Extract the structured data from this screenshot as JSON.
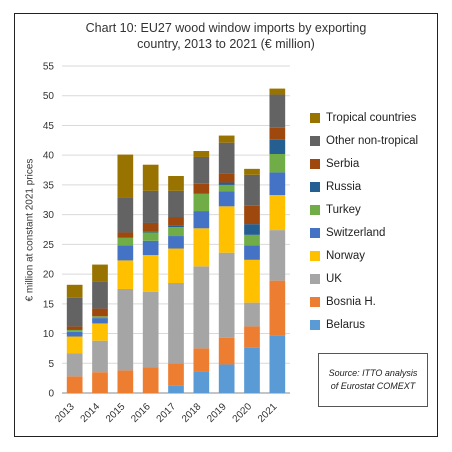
{
  "chart_data": {
    "type": "bar",
    "stacked": true,
    "title_lines": [
      "Chart 10: EU27 wood window imports by exporting",
      "country, 2013 to 2021 (€ million)"
    ],
    "ylabel": "€ million at constant 2021 prices",
    "xlabel": "",
    "ylim": [
      0,
      55
    ],
    "yticks": [
      "0",
      "5",
      "10",
      "15",
      "20",
      "25",
      "30",
      "35",
      "40",
      "45",
      "50",
      "55"
    ],
    "grid": true,
    "legend_position": "right",
    "categories": [
      "2013",
      "2014",
      "2015",
      "2016",
      "2017",
      "2018",
      "2019",
      "2020",
      "2021"
    ],
    "series": [
      {
        "name": "Belarus",
        "color": "#5b9bd5",
        "values": [
          0,
          0,
          0,
          0,
          1.3,
          3.6,
          4.8,
          7.7,
          9.6
        ]
      },
      {
        "name": "Bosnia H.",
        "color": "#ed7d31",
        "values": [
          2.8,
          3.5,
          3.8,
          4.3,
          3.7,
          3.9,
          4.5,
          3.5,
          9.3
        ]
      },
      {
        "name": "UK",
        "color": "#a5a5a5",
        "values": [
          3.9,
          5.3,
          13.7,
          12.7,
          13.5,
          13.8,
          14.3,
          4.0,
          8.5
        ]
      },
      {
        "name": "Norway",
        "color": "#ffc000",
        "values": [
          2.8,
          2.9,
          4.8,
          6.2,
          5.8,
          6.4,
          7.8,
          7.2,
          5.9
        ]
      },
      {
        "name": "Switzerland",
        "color": "#4472c4",
        "values": [
          0.8,
          0.9,
          2.5,
          2.4,
          2.1,
          2.9,
          2.5,
          2.4,
          3.8
        ]
      },
      {
        "name": "Turkey",
        "color": "#70ad47",
        "values": [
          0.3,
          0.3,
          1.3,
          1.4,
          1.5,
          2.9,
          1.1,
          1.8,
          3.1
        ]
      },
      {
        "name": "Russia",
        "color": "#255e91",
        "values": [
          0,
          0,
          0,
          0.2,
          0.3,
          0,
          0.4,
          1.8,
          2.4
        ]
      },
      {
        "name": "Serbia",
        "color": "#9e480e",
        "values": [
          0.6,
          1.3,
          0.9,
          1.4,
          1.4,
          1.7,
          1.5,
          3.1,
          2.0
        ]
      },
      {
        "name": "Other non-tropical",
        "color": "#636363",
        "values": [
          4.8,
          4.6,
          5.9,
          5.4,
          4.4,
          4.5,
          5.2,
          5.2,
          5.6
        ]
      },
      {
        "name": "Tropical countries",
        "color": "#997300",
        "values": [
          2.2,
          2.8,
          7.2,
          4.4,
          2.5,
          1.0,
          1.2,
          1.0,
          1.0
        ]
      }
    ],
    "source_lines": [
      "Source: ITTO analysis",
      "of Eurostat COMEXT"
    ]
  }
}
